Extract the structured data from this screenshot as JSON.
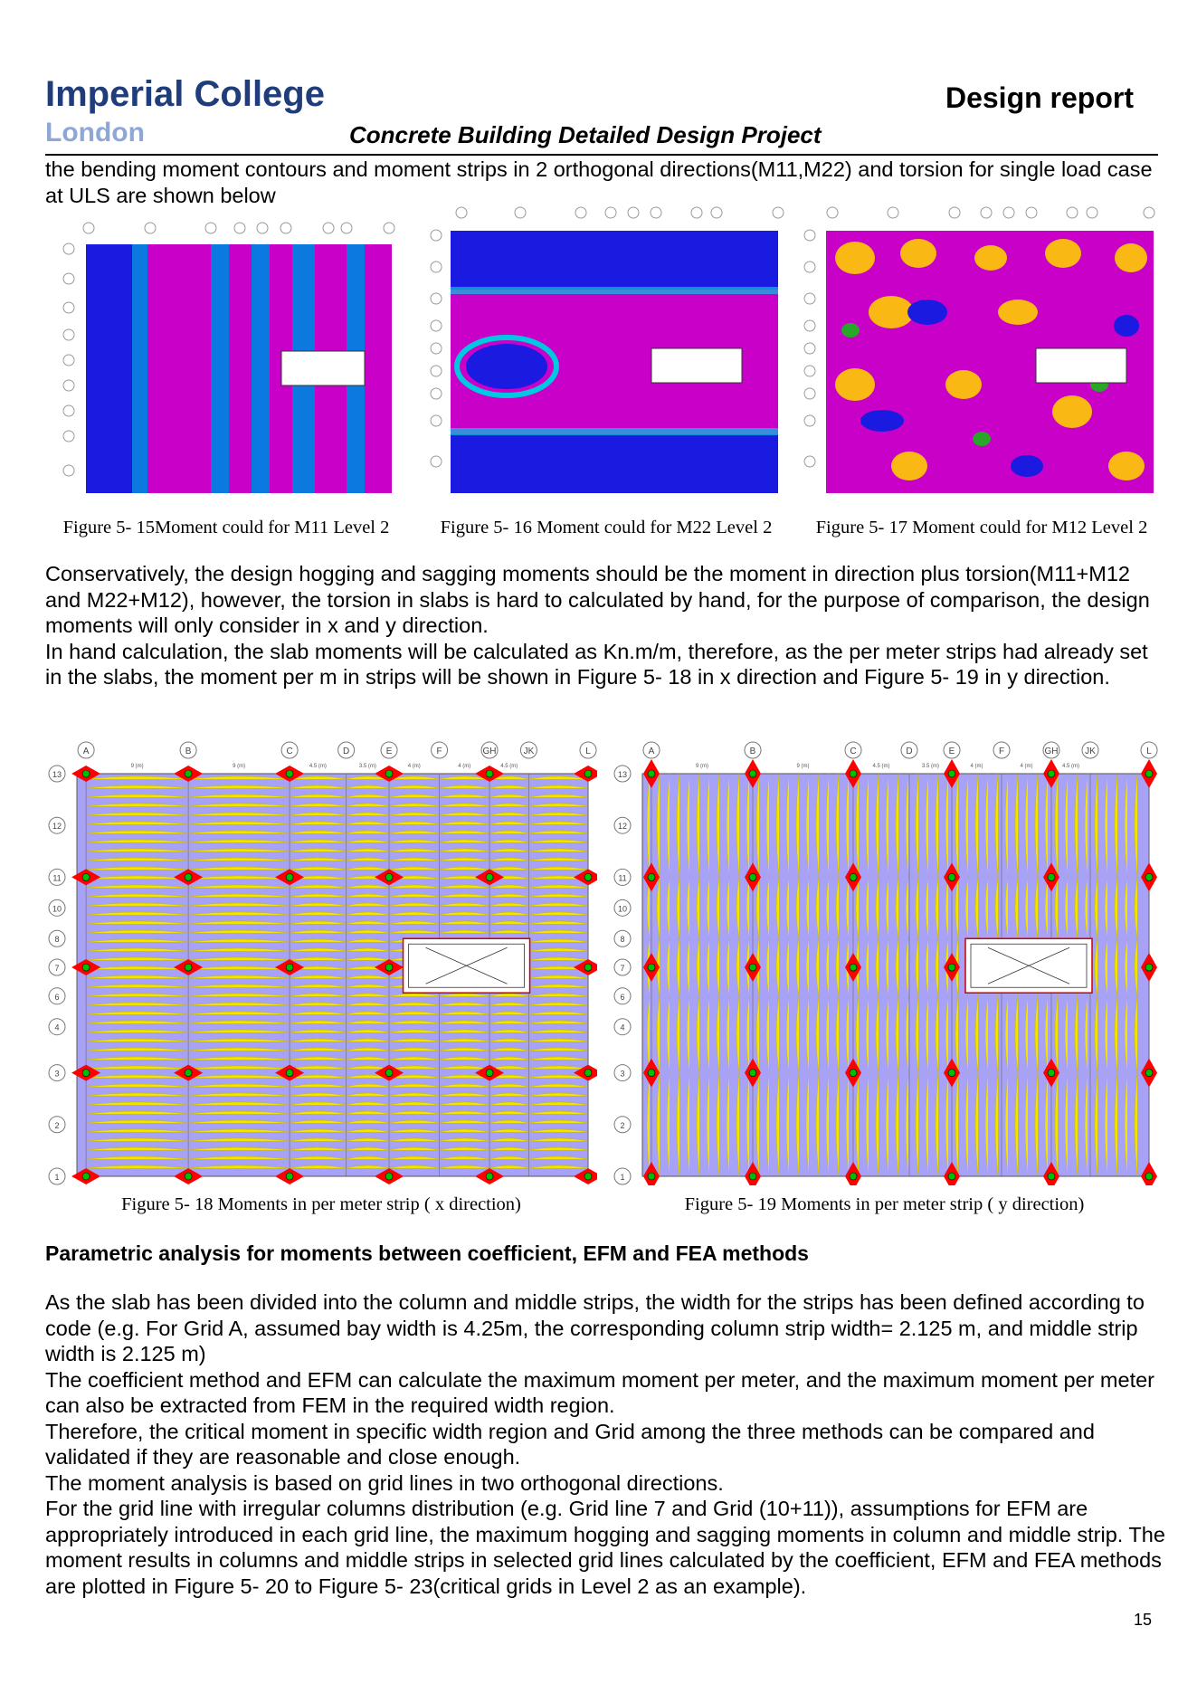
{
  "header": {
    "logo_line1": "Imperial College",
    "logo_line2": "London",
    "report_label": "Design report",
    "project_title": "Concrete Building Detailed Design Project"
  },
  "intro": "the bending moment contours and moment strips in 2 orthogonal directions(M11,M22) and torsion  for single load case at ULS are shown below",
  "figures_top": [
    {
      "caption": "Figure 5- 15Moment could for M11 Level 2"
    },
    {
      "caption": "Figure 5- 16 Moment could for M22 Level 2"
    },
    {
      "caption": "Figure 5- 17 Moment could for M12 Level 2"
    }
  ],
  "middle_paragraphs": [
    "Conservatively, the design hogging and sagging moments should be the moment in direction plus torsion(M11+M12 and M22+M12), however, the torsion in slabs is hard to calculated by hand, for the purpose of comparison, the design moments will  only consider in x and y direction.",
    "In hand calculation, the slab moments will be calculated as Kn.m/m, therefore, as the per meter strips had already set in the slabs, the moment per m in strips will be shown in Figure 5- 18 in x direction and Figure 5- 19 in y direction."
  ],
  "strip_figures": {
    "column_labels": [
      "A",
      "B",
      "C",
      "D",
      "E",
      "F",
      "GH",
      "JK",
      "L"
    ],
    "row_labels": [
      "13",
      "12",
      "11",
      "10",
      "8",
      "7",
      "6",
      "4",
      "3",
      "2",
      "1"
    ],
    "bay_labels": [
      "9 (m)",
      "9 (m)",
      "4.5 (m)",
      "3.5 (m)",
      "4 (m)",
      "4 (m)",
      "4.5 (m)"
    ],
    "captions": [
      "Figure 5- 18 Moments in per meter strip ( x direction)",
      "Figure 5- 19 Moments in per meter strip ( y direction)"
    ]
  },
  "section_heading": "Parametric analysis for moments between coefficient, EFM and FEA methods",
  "body_paragraphs": [
    "As the slab has been divided into the column and middle strips, the width for the strips has been defined according to code (e.g. For Grid A, assumed bay width is 4.25m, the corresponding column strip width= 2.125 m, and middle strip width is 2.125 m)",
    "The coefficient method and EFM can calculate the maximum moment per meter, and the maximum moment per meter can also be extracted from FEM in the required width region.",
    "Therefore, the critical moment in specific width region and Grid among the three methods can be compared and validated if they are reasonable and close enough.",
    "The moment analysis is based on grid lines in two orthogonal directions.",
    "For the grid line with irregular columns distribution (e.g. Grid line 7 and Grid (10+11)), assumptions for EFM are appropriately introduced in each grid line, the maximum hogging and sagging moments in column and middle strip. The moment results in columns and middle strips in selected grid lines calculated by the coefficient, EFM and FEA methods are plotted in Figure 5- 20 to Figure 5- 23(critical grids in Level 2 as an example)."
  ],
  "page_number": "15",
  "colors": {
    "logo": "#1f3d7a",
    "logo_sub": "#8fa7d6",
    "slab_fill": "#a7a2f5",
    "contour_bg": "#c800c8"
  }
}
